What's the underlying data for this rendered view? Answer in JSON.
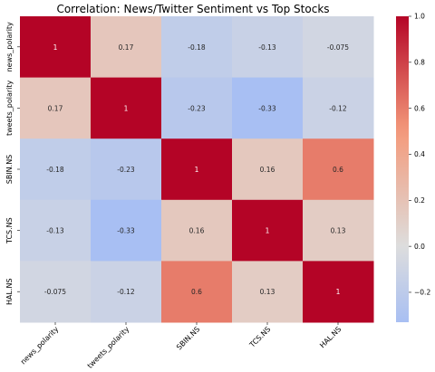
{
  "chart_data": {
    "type": "heatmap",
    "title": "Correlation: News/Twitter Sentiment vs Top Stocks",
    "x_labels": [
      "news_polarity",
      "tweets_polarity",
      "SBIN.NS",
      "TCS.NS",
      "HAL.NS"
    ],
    "y_labels": [
      "news_polarity",
      "tweets_polarity",
      "SBIN.NS",
      "TCS.NS",
      "HAL.NS"
    ],
    "values": [
      [
        1,
        0.17,
        -0.18,
        -0.13,
        -0.075
      ],
      [
        0.17,
        1,
        -0.23,
        -0.33,
        -0.12
      ],
      [
        -0.18,
        -0.23,
        1,
        0.16,
        0.6
      ],
      [
        -0.13,
        -0.33,
        0.16,
        1,
        0.13
      ],
      [
        -0.075,
        -0.12,
        0.6,
        0.13,
        1
      ]
    ],
    "cell_labels": [
      [
        "1",
        "0.17",
        "-0.18",
        "-0.13",
        "-0.075"
      ],
      [
        "0.17",
        "1",
        "-0.23",
        "-0.33",
        "-0.12"
      ],
      [
        "-0.18",
        "-0.23",
        "1",
        "0.16",
        "0.6"
      ],
      [
        "-0.13",
        "-0.33",
        "0.16",
        "1",
        "0.13"
      ],
      [
        "-0.075",
        "-0.12",
        "0.6",
        "0.13",
        "1"
      ]
    ],
    "colormap": "coolwarm",
    "colorbar": {
      "min": -0.33,
      "max": 1.0,
      "ticks": [
        1.0,
        0.8,
        0.6,
        0.4,
        0.2,
        0.0,
        -0.2
      ],
      "tick_labels": [
        "1.0",
        "0.8",
        "0.6",
        "0.4",
        "0.2",
        "0.0",
        "−0.2"
      ]
    },
    "colors": {
      "low": "#3b4cc0",
      "mid": "#dddddd",
      "high": "#b40426"
    },
    "grid": false,
    "legend_placement": "right"
  }
}
